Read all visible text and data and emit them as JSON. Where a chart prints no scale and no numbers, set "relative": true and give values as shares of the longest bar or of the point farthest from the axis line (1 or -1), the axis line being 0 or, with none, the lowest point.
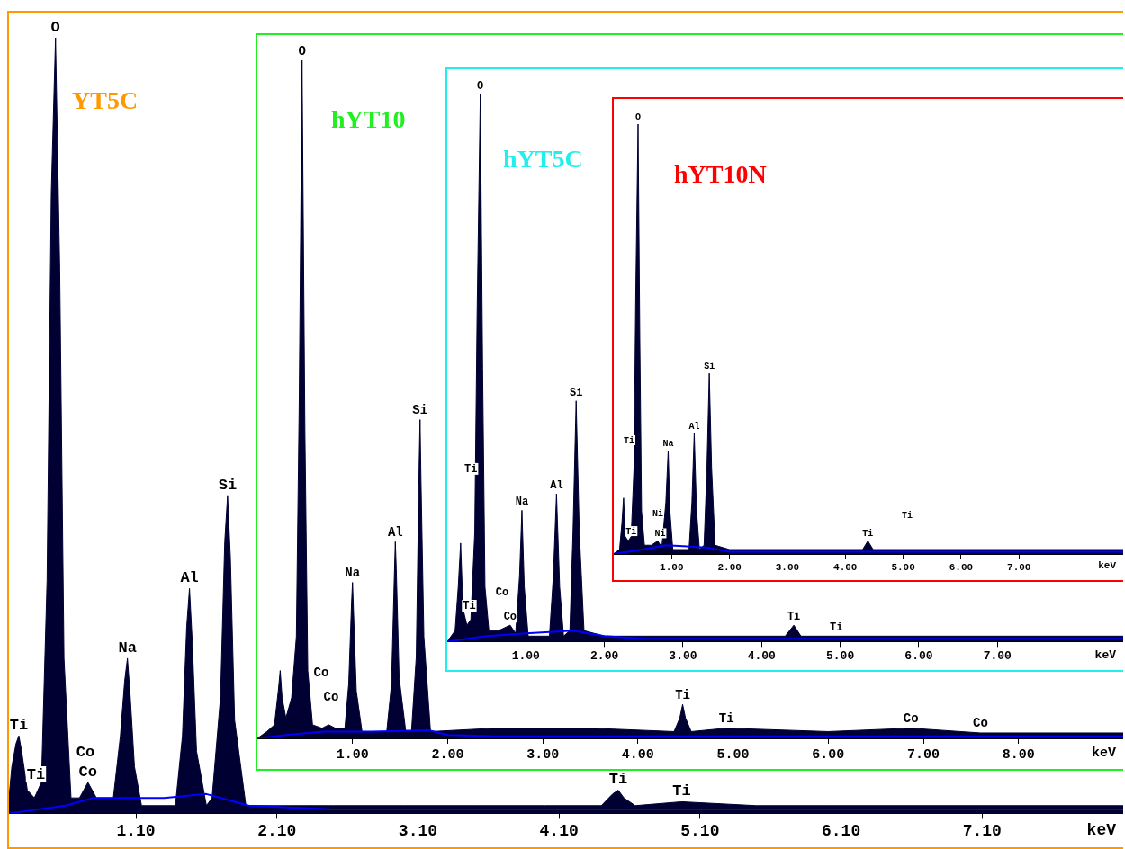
{
  "chart_data": [
    {
      "type": "area",
      "title": "YT5C",
      "relative": true,
      "xlabel": "keV",
      "xlim": [
        0.2,
        8.1
      ],
      "xticks": [
        {
          "value": 1.1,
          "label": "1.10"
        },
        {
          "value": 2.1,
          "label": "2.10"
        },
        {
          "value": 3.1,
          "label": "3.10"
        },
        {
          "value": 4.1,
          "label": "4.10"
        },
        {
          "value": 5.1,
          "label": "5.10"
        },
        {
          "value": 6.1,
          "label": "6.10"
        },
        {
          "value": 7.1,
          "label": "7.10"
        }
      ],
      "series": [
        {
          "color": "#000033",
          "x": [
            0.2,
            0.22,
            0.25,
            0.27,
            0.29,
            0.33,
            0.38,
            0.43,
            0.47,
            0.5,
            0.53,
            0.56,
            0.59,
            0.64,
            0.7,
            0.76,
            0.82,
            0.94,
            0.99,
            1.02,
            1.04,
            1.06,
            1.09,
            1.14,
            1.38,
            1.43,
            1.46,
            1.48,
            1.5,
            1.53,
            1.6,
            1.64,
            1.7,
            1.73,
            1.75,
            1.77,
            1.8,
            1.88,
            2.5,
            3.0,
            3.5,
            4.0,
            4.4,
            4.48,
            4.52,
            4.56,
            4.64,
            4.97,
            5.5,
            6.0,
            6.8,
            7.5,
            8.1
          ],
          "values": [
            0.02,
            0.06,
            0.09,
            0.1,
            0.08,
            0.03,
            0.02,
            0.04,
            0.3,
            0.8,
            1,
            0.7,
            0.2,
            0.02,
            0.02,
            0.04,
            0.02,
            0.02,
            0.1,
            0.17,
            0.2,
            0.15,
            0.06,
            0.01,
            0.01,
            0.1,
            0.24,
            0.29,
            0.22,
            0.08,
            0.01,
            0.02,
            0.15,
            0.35,
            0.41,
            0.33,
            0.12,
            0.01,
            0.01,
            0.01,
            0.01,
            0.01,
            0.01,
            0.025,
            0.03,
            0.02,
            0.01,
            0.015,
            0.01,
            0.01,
            0.01,
            0.01,
            0.01
          ]
        },
        {
          "type": "line",
          "color": "#0000ff",
          "x": [
            0.2,
            0.6,
            0.8,
            1.3,
            1.6,
            1.9,
            2.5,
            8.1
          ],
          "values": [
            0.0,
            0.01,
            0.02,
            0.02,
            0.025,
            0.01,
            0.005,
            0.005
          ]
        }
      ],
      "annotations": [
        {
          "text": "Ti",
          "x": 0.27,
          "y": 0.1
        },
        "Ti",
        {
          "text": "O",
          "x": 0.53,
          "y": 1
        },
        "Co",
        {
          "text": "Co",
          "x": 0.76,
          "y": 0.04
        },
        {
          "text": "Na",
          "x": 1.04,
          "y": 0.2
        },
        {
          "text": "Al",
          "x": 1.48,
          "y": 0.29
        },
        {
          "text": "Si",
          "x": 1.75,
          "y": 0.41
        },
        {
          "text": "Ti",
          "x": 4.52,
          "y": 0.03
        },
        {
          "text": "Ti",
          "x": 4.97,
          "y": 0.015
        }
      ]
    },
    {
      "type": "area",
      "title": "hYT10",
      "relative": true,
      "xlabel": "keV",
      "xlim": [
        0,
        9.1
      ],
      "xticks": [
        {
          "value": 1,
          "label": "1.00"
        },
        {
          "value": 2,
          "label": "2.00"
        },
        {
          "value": 3,
          "label": "3.00"
        },
        {
          "value": 4,
          "label": "4.00"
        },
        {
          "value": 5,
          "label": "5.00"
        },
        {
          "value": 6,
          "label": "6.00"
        },
        {
          "value": 7,
          "label": "7.00"
        },
        {
          "value": 8,
          "label": "8.00"
        }
      ],
      "series": [
        {
          "color": "#000033",
          "x": [
            0,
            0.1,
            0.18,
            0.22,
            0.24,
            0.26,
            0.3,
            0.36,
            0.41,
            0.44,
            0.47,
            0.5,
            0.53,
            0.58,
            0.68,
            0.75,
            0.82,
            0.92,
            0.96,
            0.99,
            1.0,
            1.01,
            1.04,
            1.1,
            1.36,
            1.41,
            1.44,
            1.45,
            1.46,
            1.49,
            1.56,
            1.62,
            1.67,
            1.7,
            1.71,
            1.72,
            1.75,
            1.82,
            2.5,
            3.5,
            4.38,
            4.44,
            4.47,
            4.5,
            4.56,
            4.93,
            6.0,
            6.87,
            7.6,
            9.1
          ],
          "values": [
            0,
            0.01,
            0.02,
            0.07,
            0.1,
            0.06,
            0.03,
            0.06,
            0.15,
            0.5,
            1,
            0.45,
            0.1,
            0.02,
            0.015,
            0.02,
            0.015,
            0.015,
            0.08,
            0.2,
            0.23,
            0.19,
            0.07,
            0.01,
            0.01,
            0.08,
            0.24,
            0.29,
            0.25,
            0.09,
            0.01,
            0.01,
            0.12,
            0.4,
            0.47,
            0.38,
            0.15,
            0.01,
            0.015,
            0.015,
            0.01,
            0.03,
            0.05,
            0.03,
            0.01,
            0.015,
            0.01,
            0.015,
            0.008,
            0.008
          ]
        },
        {
          "type": "line",
          "color": "#0000ff",
          "x": [
            0,
            0.3,
            0.7,
            1.2,
            1.8,
            2.0,
            2.5,
            9.1
          ],
          "values": [
            0,
            0.005,
            0.01,
            0.01,
            0.012,
            0.005,
            0.003,
            0.003
          ]
        }
      ],
      "annotations": [
        {
          "text": "O",
          "x": 0.47,
          "y": 1
        },
        "Co",
        "Co",
        {
          "text": "Na",
          "x": 1.0,
          "y": 0.23
        },
        {
          "text": "Al",
          "x": 1.45,
          "y": 0.29
        },
        {
          "text": "Si",
          "x": 1.71,
          "y": 0.47
        },
        {
          "text": "Ti",
          "x": 4.47,
          "y": 0.05
        },
        {
          "text": "Ti",
          "x": 4.93,
          "y": 0.015
        },
        {
          "text": "Co",
          "x": 6.87,
          "y": 0.015
        },
        {
          "text": "Co",
          "x": 7.6,
          "y": 0.008
        }
      ]
    },
    {
      "type": "area",
      "title": "hYT5C",
      "relative": true,
      "xlabel": "keV",
      "xlim": [
        0,
        8.6
      ],
      "xticks": [
        {
          "value": 1,
          "label": "1.00"
        },
        {
          "value": 2,
          "label": "2.00"
        },
        {
          "value": 3,
          "label": "3.00"
        },
        {
          "value": 4,
          "label": "4.00"
        },
        {
          "value": 5,
          "label": "5.00"
        },
        {
          "value": 6,
          "label": "6.00"
        },
        {
          "value": 7,
          "label": "7.00"
        }
      ],
      "series": [
        {
          "color": "#000033",
          "x": [
            0,
            0.1,
            0.14,
            0.17,
            0.2,
            0.25,
            0.3,
            0.35,
            0.38,
            0.42,
            0.45,
            0.48,
            0.53,
            0.65,
            0.8,
            0.87,
            0.92,
            0.95,
            0.98,
            1.03,
            1.3,
            1.35,
            1.39,
            1.43,
            1.48,
            1.56,
            1.6,
            1.64,
            1.68,
            1.74,
            2.0,
            3.0,
            4.3,
            4.41,
            4.5,
            4.95,
            6.0,
            8.6
          ],
          "values": [
            0,
            0.02,
            0.1,
            0.18,
            0.06,
            0.03,
            0.04,
            0.2,
            0.6,
            1,
            0.5,
            0.1,
            0.02,
            0.02,
            0.03,
            0.015,
            0.12,
            0.24,
            0.1,
            0.01,
            0.01,
            0.12,
            0.27,
            0.1,
            0.01,
            0.02,
            0.2,
            0.44,
            0.2,
            0.02,
            0.01,
            0.01,
            0.01,
            0.03,
            0.01,
            0.01,
            0.01,
            0.01
          ]
        },
        {
          "type": "line",
          "color": "#0000ff",
          "x": [
            0,
            0.5,
            1.0,
            1.6,
            2.0,
            2.5,
            8.6
          ],
          "values": [
            0,
            0.01,
            0.015,
            0.02,
            0.01,
            0.005,
            0.005
          ]
        }
      ],
      "annotations": [
        {
          "text": "O",
          "x": 0.42,
          "y": 1
        },
        {
          "text": "Ti",
          "x": 0.3,
          "y": 0.3
        },
        {
          "text": "Ti",
          "x": 0.28,
          "y": 0.05
        },
        "Co",
        {
          "text": "Co",
          "x": 0.8,
          "y": 0.03
        },
        {
          "text": "Na",
          "x": 0.95,
          "y": 0.24
        },
        {
          "text": "Al",
          "x": 1.39,
          "y": 0.27
        },
        {
          "text": "Si",
          "x": 1.64,
          "y": 0.44
        },
        {
          "text": "Ti",
          "x": 4.41,
          "y": 0.03
        },
        {
          "text": "Ti",
          "x": 4.95,
          "y": 0.01
        }
      ]
    },
    {
      "type": "area",
      "title": "hYT10N",
      "relative": true,
      "xlabel": "keV",
      "xlim": [
        0,
        8.8
      ],
      "xticks": [
        {
          "value": 1,
          "label": "1.00"
        },
        {
          "value": 2,
          "label": "2.00"
        },
        {
          "value": 3,
          "label": "3.00"
        },
        {
          "value": 4,
          "label": "4.00"
        },
        {
          "value": 5,
          "label": "5.00"
        },
        {
          "value": 6,
          "label": "6.00"
        },
        {
          "value": 7,
          "label": "7.00"
        }
      ],
      "series": [
        {
          "color": "#000033",
          "x": [
            0,
            0.1,
            0.14,
            0.17,
            0.2,
            0.25,
            0.3,
            0.35,
            0.38,
            0.42,
            0.45,
            0.48,
            0.53,
            0.65,
            0.76,
            0.83,
            0.9,
            0.94,
            0.97,
            1.02,
            1.3,
            1.35,
            1.39,
            1.43,
            1.48,
            1.56,
            1.61,
            1.65,
            1.69,
            1.75,
            2.0,
            3.0,
            4.3,
            4.39,
            4.48,
            4.9,
            6.0,
            8.8
          ],
          "values": [
            0,
            0.01,
            0.07,
            0.13,
            0.04,
            0.03,
            0.04,
            0.2,
            0.6,
            1,
            0.5,
            0.1,
            0.02,
            0.02,
            0.03,
            0.015,
            0.12,
            0.24,
            0.1,
            0.01,
            0.01,
            0.12,
            0.28,
            0.1,
            0.01,
            0.02,
            0.2,
            0.42,
            0.2,
            0.02,
            0.01,
            0.01,
            0.01,
            0.03,
            0.01,
            0.01,
            0.01,
            0.01
          ]
        },
        {
          "type": "line",
          "color": "#0000ff",
          "x": [
            0,
            0.5,
            0.9,
            1.6,
            2.0,
            8.8
          ],
          "values": [
            0,
            0.01,
            0.02,
            0.015,
            0.005,
            0.005
          ]
        }
      ],
      "annotations": [
        {
          "text": "O",
          "x": 0.42,
          "y": 1
        },
        "Ti",
        {
          "text": "Ti",
          "x": 0.3,
          "y": 0.035
        },
        "Ni",
        {
          "text": "Ni",
          "x": 0.8,
          "y": 0.03
        },
        {
          "text": "Na",
          "x": 0.94,
          "y": 0.24
        },
        {
          "text": "Al",
          "x": 1.39,
          "y": 0.28
        },
        {
          "text": "Si",
          "x": 1.65,
          "y": 0.42
        },
        {
          "text": "Ti",
          "x": 4.39,
          "y": 0.03
        },
        "Ti"
      ]
    }
  ]
}
